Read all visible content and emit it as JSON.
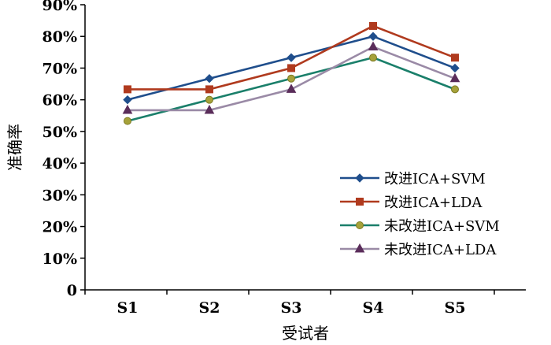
{
  "chart_data": {
    "type": "line",
    "title": "",
    "xlabel": "受试者",
    "ylabel": "准确率",
    "categories": [
      "S1",
      "S2",
      "S3",
      "S4",
      "S5"
    ],
    "ylim": [
      0,
      90
    ],
    "yticks": [
      "0",
      "10%",
      "20%",
      "30%",
      "40%",
      "50%",
      "60%",
      "70%",
      "80%",
      "90%"
    ],
    "grid": false,
    "legend_position": "bottom-right",
    "series": [
      {
        "name": "改进ICA+SVM",
        "values": [
          60.0,
          66.7,
          73.3,
          80.0,
          70.0
        ],
        "color": "#1f4e8c",
        "marker": "diamond"
      },
      {
        "name": "改进ICA+LDA",
        "values": [
          63.3,
          63.3,
          70.0,
          83.3,
          73.3
        ],
        "color": "#b03a1e",
        "marker": "square"
      },
      {
        "name": "未改进ICA+SVM",
        "values": [
          53.3,
          60.0,
          66.7,
          73.3,
          63.3
        ],
        "color": "#1a7f6a",
        "marker": "circle"
      },
      {
        "name": "未改进ICA+LDA",
        "values": [
          56.7,
          56.7,
          63.3,
          76.7,
          66.7
        ],
        "color": "#9a8aa6",
        "marker": "triangle"
      }
    ]
  }
}
